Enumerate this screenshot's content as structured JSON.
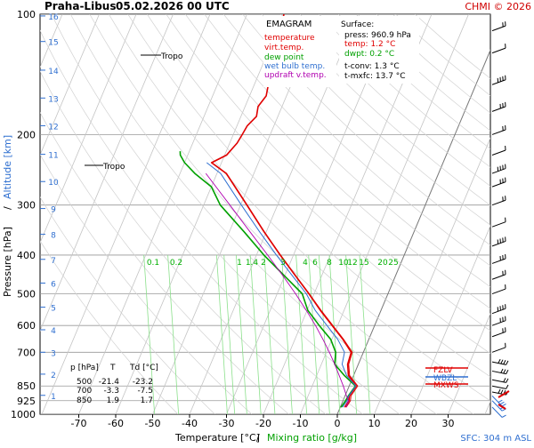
{
  "header": {
    "station": "Praha-Libus",
    "datetime": "05.02.2026 00 UTC",
    "credit": "CHMI © 2026"
  },
  "legend": {
    "title": "EMAGRAM",
    "items": [
      {
        "label": "temperature",
        "color": "#e00000"
      },
      {
        "label": "virt.temp.",
        "color": "#e00000"
      },
      {
        "label": "dew point",
        "color": "#00a000"
      },
      {
        "label": "wet bulb temp.",
        "color": "#2f6fd0"
      },
      {
        "label": "updraft v.temp.",
        "color": "#b000b0"
      }
    ]
  },
  "surface_box": {
    "title": "Surface:",
    "press": "press: 960.9 hPa",
    "temp": "temp: 1.2 °C",
    "dwpt": "dwpt: 0.2 °C",
    "tconv": "t-conv: 1.3 °C",
    "tmxfc": "t-mxfc: 13.7 °C"
  },
  "level_table": {
    "headers": [
      "p [hPa]",
      "T",
      "Td [°C]"
    ],
    "rows": [
      [
        "500",
        "-21.4",
        "-23.2"
      ],
      [
        "700",
        "-3.3",
        "-7.5"
      ],
      [
        "850",
        "1.9",
        "1.7"
      ]
    ]
  },
  "labels": {
    "tropo_upper": "Tropo",
    "tropo_lower": "Tropo",
    "fzlv": "FZLV",
    "wbzl": "WBZL",
    "mxws": "MXWS",
    "x_axis_temp": "Temperature [°C]",
    "x_axis_sep": "/",
    "x_axis_mix": "Mixing ratio [g/kg]",
    "y_axis_pressure": "Pressure [hPa]",
    "y_axis_sep": "/",
    "y_axis_alt": "Altitude [km]",
    "sfc": "SFC: 304 m ASL"
  },
  "chart_data": {
    "type": "line",
    "y_scale": "log",
    "ylim": [
      1000,
      100
    ],
    "xlim": [
      -80,
      30
    ],
    "pressure_ticks": [
      100,
      200,
      300,
      400,
      500,
      600,
      700,
      850,
      925,
      1000
    ],
    "temperature_ticks": [
      -70,
      -60,
      -50,
      -40,
      -30,
      -20,
      -10,
      0,
      10,
      20,
      30
    ],
    "altitude_ticks": [
      {
        "km": "1",
        "p": 897
      },
      {
        "km": "2",
        "p": 794
      },
      {
        "km": "3",
        "p": 700
      },
      {
        "km": "4",
        "p": 615
      },
      {
        "km": "5",
        "p": 540
      },
      {
        "km": "6",
        "p": 470
      },
      {
        "km": "7",
        "p": 410
      },
      {
        "km": "8",
        "p": 355
      },
      {
        "km": "9",
        "p": 306
      },
      {
        "km": "10",
        "p": 262
      },
      {
        "km": "11",
        "p": 224
      },
      {
        "km": "12",
        "p": 190
      },
      {
        "km": "13",
        "p": 162
      },
      {
        "km": "14",
        "p": 138
      },
      {
        "km": "15",
        "p": 117
      },
      {
        "km": "16",
        "p": 101
      }
    ],
    "mixing_ratio_labels": [
      "0.1",
      "0.2",
      "1",
      "1.4",
      "2",
      "3",
      "4",
      "6",
      "8",
      "10",
      "12",
      "15",
      "20",
      "25"
    ],
    "mixing_ratio_label_positions_T": [
      -70.5,
      -64,
      -50.8,
      -48.8,
      -45.5,
      -41.7,
      -37.9,
      -33.2,
      -29.3,
      -25.9,
      -23.1,
      -20.3,
      -15.8,
      -12.1
    ],
    "series": [
      {
        "name": "temperature",
        "color": "#e00000",
        "points": [
          [
            960.9,
            1.2
          ],
          [
            925,
            1.6
          ],
          [
            900,
            1.2
          ],
          [
            850,
            1.9
          ],
          [
            800,
            -1.4
          ],
          [
            750,
            -2.9
          ],
          [
            700,
            -3.3
          ],
          [
            650,
            -7.0
          ],
          [
            600,
            -11.5
          ],
          [
            550,
            -16.4
          ],
          [
            500,
            -21.4
          ],
          [
            450,
            -27.2
          ],
          [
            400,
            -33.6
          ],
          [
            350,
            -40.6
          ],
          [
            300,
            -48.3
          ],
          [
            250,
            -57.5
          ],
          [
            235,
            -62.7
          ],
          [
            225,
            -59.5
          ],
          [
            210,
            -58.0
          ],
          [
            200,
            -57.6
          ],
          [
            190,
            -57.2
          ],
          [
            180,
            -55.8
          ],
          [
            170,
            -56.5
          ],
          [
            160,
            -55.5
          ],
          [
            150,
            -56.2
          ],
          [
            142,
            -55.7
          ],
          [
            135,
            -54.8
          ],
          [
            125,
            -57.0
          ],
          [
            115,
            -58.5
          ],
          [
            105,
            -59.5
          ],
          [
            100,
            -60.0
          ]
        ]
      },
      {
        "name": "virt.temp.",
        "color": "#e00000",
        "points": [
          [
            960.9,
            1.6
          ],
          [
            925,
            2.0
          ],
          [
            900,
            1.6
          ],
          [
            850,
            2.3
          ],
          [
            800,
            -1.1
          ],
          [
            750,
            -2.6
          ],
          [
            700,
            -3.0
          ],
          [
            650,
            -6.8
          ],
          [
            600,
            -11.3
          ],
          [
            550,
            -16.2
          ],
          [
            500,
            -21.3
          ],
          [
            450,
            -27.1
          ],
          [
            400,
            -33.5
          ],
          [
            350,
            -40.5
          ],
          [
            300,
            -48.2
          ],
          [
            250,
            -57.4
          ],
          [
            235,
            -62.6
          ],
          [
            225,
            -59.4
          ],
          [
            210,
            -58.0
          ]
        ]
      },
      {
        "name": "dew point",
        "color": "#00a000",
        "points": [
          [
            960.9,
            0.2
          ],
          [
            925,
            0.7
          ],
          [
            900,
            0.9
          ],
          [
            850,
            1.7
          ],
          [
            800,
            -2.5
          ],
          [
            750,
            -6.4
          ],
          [
            700,
            -7.5
          ],
          [
            650,
            -10.3
          ],
          [
            600,
            -15.0
          ],
          [
            550,
            -19.8
          ],
          [
            500,
            -23.2
          ],
          [
            450,
            -30.2
          ],
          [
            400,
            -38.0
          ],
          [
            350,
            -46.0
          ],
          [
            300,
            -55.5
          ],
          [
            270,
            -60.0
          ],
          [
            250,
            -66.0
          ],
          [
            235,
            -70.0
          ],
          [
            225,
            -72.0
          ],
          [
            220,
            -72.5
          ]
        ]
      },
      {
        "name": "wet bulb temp.",
        "color": "#2f6fd0",
        "points": [
          [
            960.9,
            0.6
          ],
          [
            925,
            1.1
          ],
          [
            900,
            1.0
          ],
          [
            850,
            1.8
          ],
          [
            800,
            -1.9
          ],
          [
            750,
            -4.4
          ],
          [
            700,
            -5.1
          ],
          [
            650,
            -8.4
          ],
          [
            600,
            -12.9
          ],
          [
            550,
            -17.8
          ],
          [
            500,
            -22.1
          ],
          [
            450,
            -28.0
          ],
          [
            400,
            -34.6
          ],
          [
            350,
            -41.8
          ],
          [
            300,
            -49.8
          ],
          [
            250,
            -59.0
          ],
          [
            235,
            -64.0
          ]
        ]
      },
      {
        "name": "updraft v.temp.",
        "color": "#b000b0",
        "points": [
          [
            960.9,
            1.6
          ],
          [
            925,
            1.5
          ],
          [
            900,
            0.4
          ],
          [
            850,
            -1.6
          ],
          [
            800,
            -3.9
          ],
          [
            750,
            -6.4
          ],
          [
            700,
            -9.2
          ],
          [
            650,
            -12.4
          ],
          [
            600,
            -16.0
          ],
          [
            550,
            -20.2
          ],
          [
            500,
            -25.0
          ],
          [
            450,
            -30.6
          ],
          [
            400,
            -37.0
          ],
          [
            350,
            -44.4
          ],
          [
            300,
            -52.9
          ],
          [
            250,
            -63.0
          ]
        ]
      }
    ],
    "wind_levels_hpa": [
      960,
      925,
      900,
      880,
      850,
      820,
      780,
      740,
      700,
      640,
      600,
      560,
      500,
      460,
      420,
      380,
      340,
      300,
      270,
      250,
      225,
      200,
      175,
      150,
      125,
      110
    ]
  }
}
